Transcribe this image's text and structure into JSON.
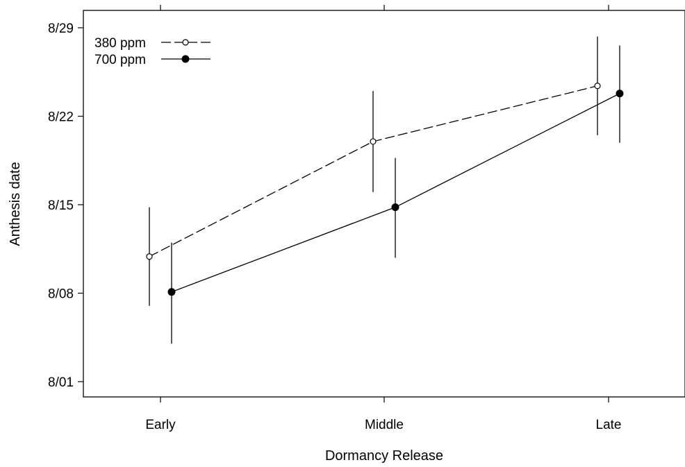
{
  "chart_data": {
    "type": "line",
    "xlabel": "Dormancy Release",
    "ylabel": "Anthesis date",
    "categories": [
      "Early",
      "Middle",
      "Late"
    ],
    "y_ticks": [
      {
        "value": 0,
        "label": "8/01"
      },
      {
        "value": 7,
        "label": "8/08"
      },
      {
        "value": 14,
        "label": "8/15"
      },
      {
        "value": 21,
        "label": "8/22"
      },
      {
        "value": 28,
        "label": "8/29"
      }
    ],
    "ylim": [
      -1,
      30
    ],
    "legend_position": "top-left",
    "series": [
      {
        "name": "380 ppm",
        "marker": "open-circle",
        "line_style": "dashed",
        "values": [
          9.9,
          19.0,
          23.4
        ],
        "lower": [
          6.0,
          15.0,
          19.5
        ],
        "upper": [
          13.8,
          23.0,
          27.3
        ]
      },
      {
        "name": "700 ppm",
        "marker": "filled-circle",
        "line_style": "solid",
        "values": [
          7.1,
          13.8,
          22.8
        ],
        "lower": [
          3.0,
          9.8,
          18.9
        ],
        "upper": [
          11.0,
          17.7,
          26.6
        ]
      }
    ]
  }
}
